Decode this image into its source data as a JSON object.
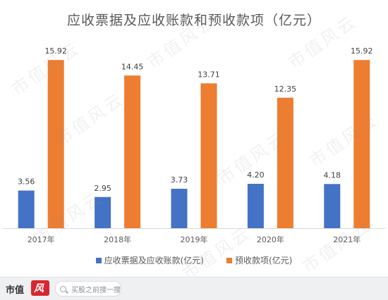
{
  "chart_data": {
    "type": "bar",
    "title": "应收票据及应收账款和预收款项（亿元）",
    "categories": [
      "2017年",
      "2018年",
      "2019年",
      "2020年",
      "2021年"
    ],
    "series": [
      {
        "name": "应收票据及应收账款(亿元)",
        "color": "#4472c4",
        "values": [
          3.56,
          2.95,
          3.73,
          4.2,
          4.18
        ],
        "labels": [
          "3.56",
          "2.95",
          "3.73",
          "4.20",
          "4.18"
        ]
      },
      {
        "name": "预收款项(亿元)",
        "color": "#ed7d31",
        "values": [
          15.92,
          14.45,
          13.71,
          12.35,
          15.92
        ],
        "labels": [
          "15.92",
          "14.45",
          "13.71",
          "12.35",
          "15.92"
        ]
      }
    ],
    "ylim": [
      0,
      18
    ],
    "grid": false,
    "legend_position": "bottom"
  },
  "watermark": "市值风云",
  "footer": {
    "brand": "市值",
    "brand_badge": "风",
    "search_placeholder": "买股之前搜一搜"
  }
}
